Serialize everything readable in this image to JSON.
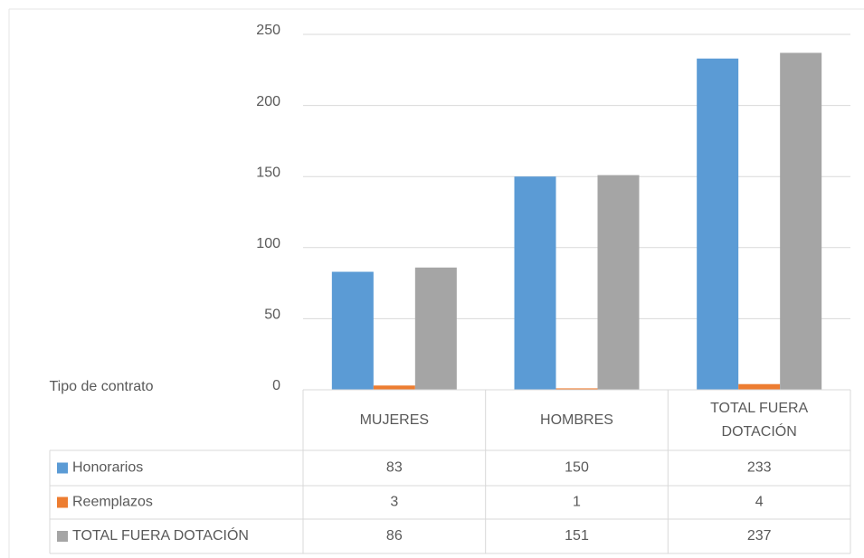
{
  "chart_data": {
    "type": "bar",
    "x_label": "Tipo de contrato",
    "categories": [
      "MUJERES",
      "HOMBRES",
      "TOTAL FUERA DOTACIÓN"
    ],
    "series": [
      {
        "name": "Honorarios",
        "color": "#5b9bd5",
        "values": [
          83,
          150,
          233
        ]
      },
      {
        "name": "Reemplazos",
        "color": "#ed7d31",
        "values": [
          3,
          1,
          4
        ]
      },
      {
        "name": "TOTAL FUERA DOTACIÓN",
        "color": "#a5a5a5",
        "values": [
          86,
          151,
          237
        ]
      }
    ],
    "ylim": [
      0,
      250
    ],
    "yticks": [
      0,
      50,
      100,
      150,
      200,
      250
    ],
    "grid": true
  }
}
